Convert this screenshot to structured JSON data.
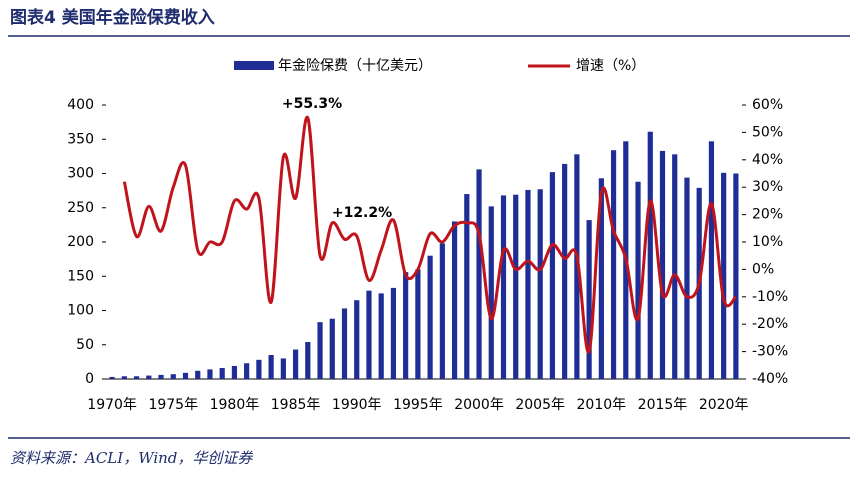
{
  "header": {
    "title": "图表4 美国年金险保费收入"
  },
  "chart_data": {
    "type": "bar_line",
    "categories": [
      "1970年",
      null,
      null,
      null,
      null,
      "1975年",
      null,
      null,
      null,
      null,
      "1980年",
      null,
      null,
      null,
      null,
      "1985年",
      null,
      null,
      null,
      null,
      "1990年",
      null,
      null,
      null,
      null,
      "1995年",
      null,
      null,
      null,
      null,
      "2000年",
      null,
      null,
      null,
      null,
      "2005年",
      null,
      null,
      null,
      null,
      "2010年",
      null,
      null,
      null,
      null,
      "2015年",
      null,
      null,
      null,
      null,
      "2020年",
      null
    ],
    "series": [
      {
        "name": "年金险保费（十亿美元）",
        "color": "#1f2d96",
        "axis": "y",
        "values": [
          3,
          4,
          4,
          5,
          6,
          7,
          9,
          12,
          14,
          16,
          19,
          23,
          28,
          35,
          30,
          43,
          54,
          83,
          88,
          103,
          115,
          129,
          125,
          133,
          156,
          160,
          180,
          198,
          230,
          270,
          306,
          252,
          268,
          269,
          276,
          277,
          302,
          314,
          328,
          232,
          293,
          334,
          347,
          288,
          361,
          333,
          328,
          294,
          279,
          347,
          301,
          300
        ]
      },
      {
        "name": "增速（%）",
        "color": "#c0141c",
        "axis": "y2",
        "values": [
          null,
          32,
          12,
          23,
          14,
          30,
          38,
          7,
          10,
          10,
          25,
          22,
          26,
          -12,
          41,
          26,
          55.3,
          5,
          17,
          11,
          12.2,
          -4,
          7,
          18,
          -2,
          0,
          13,
          10,
          16,
          17,
          13,
          -18,
          7,
          0,
          3,
          0,
          9,
          4,
          5,
          -30,
          28,
          14,
          4,
          -18,
          25,
          -9,
          -2,
          -10,
          -5,
          24,
          -11,
          -10
        ]
      }
    ],
    "annotations": [
      "+55.3%",
      "+12.2%"
    ],
    "ylim": [
      0,
      400
    ],
    "yticks": [
      0,
      50,
      100,
      150,
      200,
      250,
      300,
      350,
      400
    ],
    "y2lim": [
      -40,
      60
    ],
    "y2ticks": [
      {
        "value": -40,
        "label": "-40%"
      },
      {
        "value": -30,
        "label": "-30%"
      },
      {
        "value": -20,
        "label": "-20%"
      },
      {
        "value": -10,
        "label": "-10%"
      },
      {
        "value": 0,
        "label": "0%"
      },
      {
        "value": 10,
        "label": "10%"
      },
      {
        "value": 20,
        "label": "20%"
      },
      {
        "value": 30,
        "label": "30%"
      },
      {
        "value": 40,
        "label": "40%"
      },
      {
        "value": 50,
        "label": "50%"
      },
      {
        "value": 60,
        "label": "60%"
      }
    ]
  },
  "footer": {
    "source": "资料来源：ACLI，Wind，华创证券"
  }
}
